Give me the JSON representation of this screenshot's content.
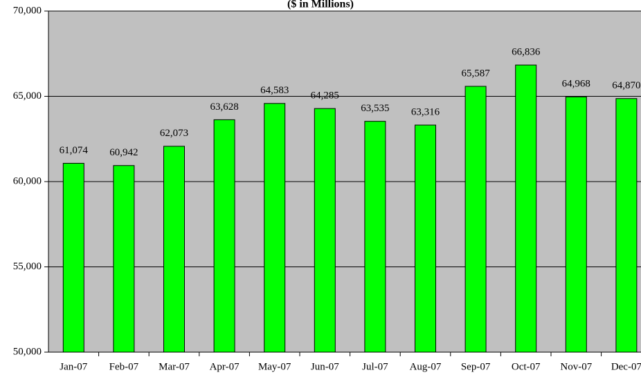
{
  "chart_data": {
    "type": "bar",
    "title": "($ in Millions)",
    "categories": [
      "Jan-07",
      "Feb-07",
      "Mar-07",
      "Apr-07",
      "May-07",
      "Jun-07",
      "Jul-07",
      "Aug-07",
      "Sep-07",
      "Oct-07",
      "Nov-07",
      "Dec-07"
    ],
    "values": [
      61074,
      60942,
      62073,
      63628,
      64583,
      64285,
      63535,
      63316,
      65587,
      66836,
      64968,
      64870
    ],
    "value_labels": [
      "61,074",
      "60,942",
      "62,073",
      "63,628",
      "64,583",
      "64,285",
      "63,535",
      "63,316",
      "65,587",
      "66,836",
      "64,968",
      "64,870"
    ],
    "color": "#00ff00",
    "ylim": [
      50000,
      70000
    ],
    "yticks": [
      {
        "value": 50000,
        "label": "50,000"
      },
      {
        "value": 55000,
        "label": "55,000"
      },
      {
        "value": 60000,
        "label": "60,000"
      },
      {
        "value": 65000,
        "label": "65,000"
      },
      {
        "value": 70000,
        "label": "70,000"
      }
    ],
    "grid": true
  }
}
